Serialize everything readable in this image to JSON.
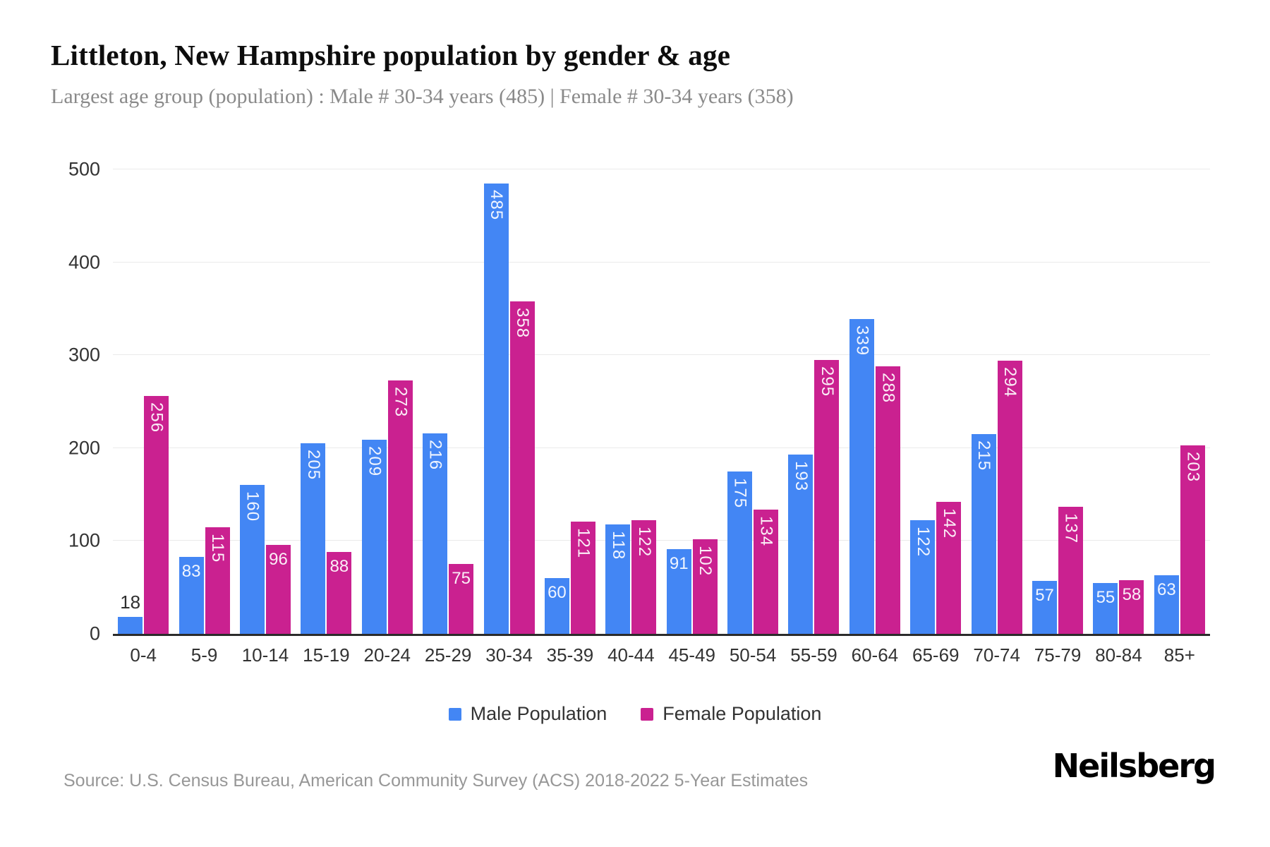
{
  "header": {
    "title": "Littleton, New Hampshire population by gender & age",
    "subtitle": "Largest age group (population) : Male # 30-34 years (485) | Female # 30-34 years (358)"
  },
  "chart_data": {
    "type": "bar",
    "title": "Littleton, New Hampshire population by gender & age",
    "categories": [
      "0-4",
      "5-9",
      "10-14",
      "15-19",
      "20-24",
      "25-29",
      "30-34",
      "35-39",
      "40-44",
      "45-49",
      "50-54",
      "55-59",
      "60-64",
      "65-69",
      "70-74",
      "75-79",
      "80-84",
      "85+"
    ],
    "series": [
      {
        "name": "Male Population",
        "color": "#4386f4",
        "values": [
          18,
          83,
          160,
          205,
          209,
          216,
          485,
          60,
          118,
          91,
          175,
          193,
          339,
          122,
          215,
          57,
          55,
          63
        ]
      },
      {
        "name": "Female Population",
        "color": "#ca2190",
        "values": [
          256,
          115,
          96,
          88,
          273,
          75,
          358,
          121,
          122,
          102,
          134,
          295,
          288,
          142,
          294,
          137,
          58,
          203
        ]
      }
    ],
    "xlabel": "",
    "ylabel": "",
    "ylim": [
      0,
      500
    ],
    "yticks": [
      0,
      100,
      200,
      300,
      400,
      500
    ],
    "grid": true,
    "legend_position": "bottom"
  },
  "colors": {
    "male": "#4386f4",
    "female": "#ca2190",
    "gridline": "#eaeaea",
    "axis_line": "#2b2b2b"
  },
  "footer": {
    "source": "Source: U.S. Census Bureau, American Community Survey (ACS) 2018-2022 5-Year Estimates",
    "brand": "Neilsberg"
  }
}
